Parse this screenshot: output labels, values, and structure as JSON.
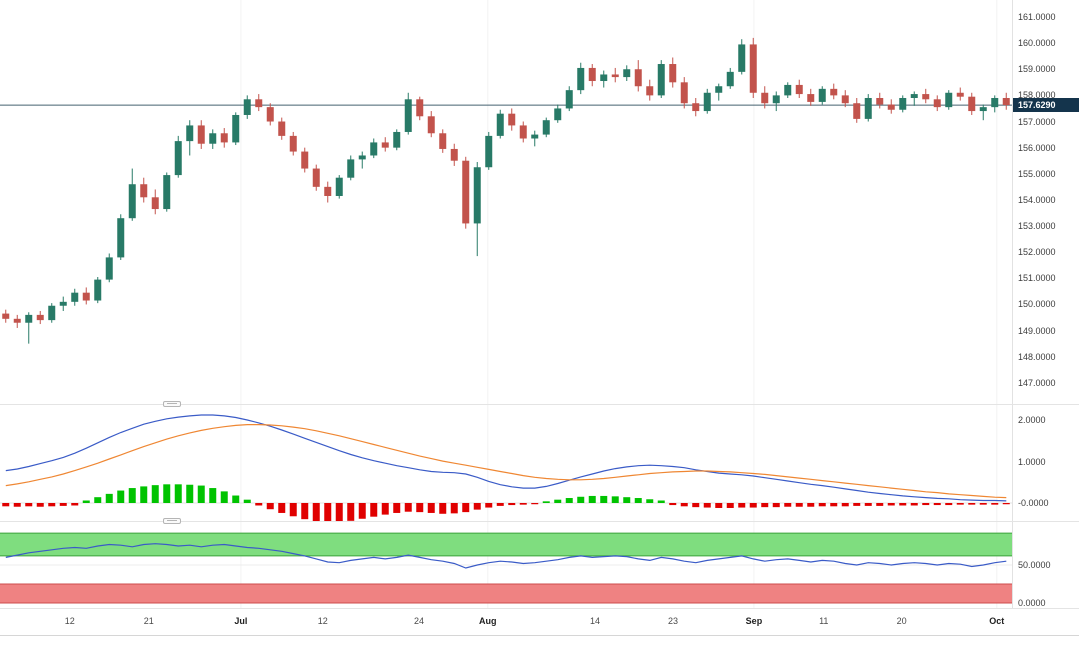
{
  "price_axis": {
    "tick_labels": [
      "161.0000",
      "160.0000",
      "159.0000",
      "158.0000",
      "157.0000",
      "156.0000",
      "155.0000",
      "154.0000",
      "153.0000",
      "152.0000",
      "151.0000",
      "150.0000",
      "149.0000",
      "148.0000",
      "147.0000"
    ],
    "tick_values": [
      161,
      160,
      159,
      158,
      157,
      156,
      155,
      154,
      153,
      152,
      151,
      150,
      149,
      148,
      147
    ],
    "current_price": "157.6290",
    "current_price_value": 157.629,
    "tag_bg": "#14344c",
    "tag_text_color": "#ffffff"
  },
  "x_axis": {
    "labels": [
      {
        "text": "12",
        "pos": 0.069,
        "bold": false
      },
      {
        "text": "21",
        "pos": 0.147,
        "bold": false
      },
      {
        "text": "Jul",
        "pos": 0.238,
        "bold": true
      },
      {
        "text": "12",
        "pos": 0.319,
        "bold": false
      },
      {
        "text": "24",
        "pos": 0.414,
        "bold": false
      },
      {
        "text": "Aug",
        "pos": 0.482,
        "bold": true
      },
      {
        "text": "14",
        "pos": 0.588,
        "bold": false
      },
      {
        "text": "23",
        "pos": 0.665,
        "bold": false
      },
      {
        "text": "Sep",
        "pos": 0.745,
        "bold": true
      },
      {
        "text": "11",
        "pos": 0.814,
        "bold": false
      },
      {
        "text": "20",
        "pos": 0.891,
        "bold": false
      },
      {
        "text": "Oct",
        "pos": 0.985,
        "bold": true
      }
    ]
  },
  "chart_data": [
    {
      "type": "candlestick",
      "name": "price",
      "ylim": [
        146.19,
        161.65
      ],
      "up_color": "#287a67",
      "down_color": "#c2534c",
      "price_line_color": "#44606f",
      "last_price": 157.629,
      "grid_color": "#f2f2f2",
      "ohlc": [
        [
          149.65,
          149.8,
          149.3,
          149.45
        ],
        [
          149.45,
          149.6,
          149.1,
          149.3
        ],
        [
          149.3,
          149.7,
          148.5,
          149.6
        ],
        [
          149.6,
          149.75,
          149.25,
          149.4
        ],
        [
          149.4,
          150.05,
          149.3,
          149.95
        ],
        [
          149.95,
          150.3,
          149.75,
          150.1
        ],
        [
          150.1,
          150.6,
          149.95,
          150.45
        ],
        [
          150.45,
          150.65,
          150.0,
          150.15
        ],
        [
          150.15,
          151.05,
          150.05,
          150.95
        ],
        [
          150.95,
          151.95,
          150.85,
          151.8
        ],
        [
          151.8,
          153.45,
          151.7,
          153.3
        ],
        [
          153.3,
          155.2,
          153.2,
          154.6
        ],
        [
          154.6,
          154.85,
          153.9,
          154.1
        ],
        [
          154.1,
          154.4,
          153.45,
          153.65
        ],
        [
          153.65,
          155.05,
          153.55,
          154.95
        ],
        [
          154.95,
          156.45,
          154.85,
          156.25
        ],
        [
          156.25,
          157.05,
          155.7,
          156.85
        ],
        [
          156.85,
          157.05,
          155.95,
          156.15
        ],
        [
          156.15,
          156.7,
          155.95,
          156.55
        ],
        [
          156.55,
          156.75,
          156.0,
          156.2
        ],
        [
          156.2,
          157.35,
          156.1,
          157.25
        ],
        [
          157.25,
          158.0,
          157.1,
          157.85
        ],
        [
          157.85,
          158.05,
          157.4,
          157.55
        ],
        [
          157.55,
          157.7,
          156.85,
          157.0
        ],
        [
          157.0,
          157.15,
          156.3,
          156.45
        ],
        [
          156.45,
          156.6,
          155.7,
          155.85
        ],
        [
          155.85,
          156.0,
          155.05,
          155.2
        ],
        [
          155.2,
          155.35,
          154.35,
          154.5
        ],
        [
          154.5,
          154.7,
          153.9,
          154.15
        ],
        [
          154.15,
          154.95,
          154.05,
          154.85
        ],
        [
          154.85,
          155.7,
          154.75,
          155.55
        ],
        [
          155.55,
          155.85,
          155.2,
          155.7
        ],
        [
          155.7,
          156.35,
          155.6,
          156.2
        ],
        [
          156.2,
          156.4,
          155.85,
          156.0
        ],
        [
          156.0,
          156.7,
          155.9,
          156.6
        ],
        [
          156.6,
          158.1,
          156.5,
          157.85
        ],
        [
          157.85,
          157.95,
          157.05,
          157.2
        ],
        [
          157.2,
          157.4,
          156.4,
          156.55
        ],
        [
          156.55,
          156.7,
          155.8,
          155.95
        ],
        [
          155.95,
          156.15,
          155.3,
          155.5
        ],
        [
          155.5,
          155.65,
          152.9,
          153.1
        ],
        [
          153.1,
          155.45,
          151.85,
          155.25
        ],
        [
          155.25,
          156.6,
          155.15,
          156.45
        ],
        [
          156.45,
          157.45,
          156.35,
          157.3
        ],
        [
          157.3,
          157.5,
          156.65,
          156.85
        ],
        [
          156.85,
          157.0,
          156.2,
          156.35
        ],
        [
          156.35,
          156.65,
          156.05,
          156.5
        ],
        [
          156.5,
          157.15,
          156.4,
          157.05
        ],
        [
          157.05,
          157.65,
          156.95,
          157.5
        ],
        [
          157.5,
          158.35,
          157.4,
          158.2
        ],
        [
          158.2,
          159.25,
          158.05,
          159.05
        ],
        [
          159.05,
          159.2,
          158.35,
          158.55
        ],
        [
          158.55,
          158.95,
          158.3,
          158.8
        ],
        [
          158.8,
          159.05,
          158.5,
          158.7
        ],
        [
          158.7,
          159.15,
          158.55,
          159.0
        ],
        [
          159.0,
          159.35,
          158.15,
          158.35
        ],
        [
          158.35,
          158.6,
          157.8,
          158.0
        ],
        [
          158.0,
          159.35,
          157.9,
          159.2
        ],
        [
          159.2,
          159.45,
          158.3,
          158.5
        ],
        [
          158.5,
          158.7,
          157.5,
          157.7
        ],
        [
          157.7,
          157.9,
          157.2,
          157.4
        ],
        [
          157.4,
          158.25,
          157.3,
          158.1
        ],
        [
          158.1,
          158.45,
          157.8,
          158.35
        ],
        [
          158.35,
          159.05,
          158.25,
          158.9
        ],
        [
          158.9,
          160.15,
          158.8,
          159.95
        ],
        [
          159.95,
          160.2,
          157.9,
          158.1
        ],
        [
          158.1,
          158.35,
          157.5,
          157.7
        ],
        [
          157.7,
          158.15,
          157.4,
          158.0
        ],
        [
          158.0,
          158.5,
          157.9,
          158.4
        ],
        [
          158.4,
          158.6,
          157.9,
          158.05
        ],
        [
          158.05,
          158.25,
          157.6,
          157.75
        ],
        [
          157.75,
          158.35,
          157.65,
          158.25
        ],
        [
          158.25,
          158.45,
          157.85,
          158.0
        ],
        [
          158.0,
          158.2,
          157.55,
          157.7
        ],
        [
          157.7,
          157.9,
          156.95,
          157.1
        ],
        [
          157.1,
          158.05,
          157.0,
          157.9
        ],
        [
          157.9,
          158.1,
          157.5,
          157.65
        ],
        [
          157.65,
          157.85,
          157.3,
          157.45
        ],
        [
          157.45,
          158.0,
          157.35,
          157.9
        ],
        [
          157.9,
          158.15,
          157.6,
          158.05
        ],
        [
          158.05,
          158.25,
          157.7,
          157.85
        ],
        [
          157.85,
          158.0,
          157.4,
          157.55
        ],
        [
          157.55,
          158.2,
          157.45,
          158.1
        ],
        [
          158.1,
          158.3,
          157.8,
          157.95
        ],
        [
          157.95,
          158.1,
          157.25,
          157.4
        ],
        [
          157.4,
          157.65,
          157.05,
          157.55
        ],
        [
          157.55,
          158.0,
          157.35,
          157.9
        ],
        [
          157.9,
          158.1,
          157.45,
          157.63
        ]
      ]
    },
    {
      "type": "macd",
      "name": "macd",
      "ylim": [
        -0.434,
        2.386
      ],
      "yticks": {
        "labels": [
          "2.0000",
          "1.0000",
          "-0.0000"
        ],
        "values": [
          2,
          1,
          0
        ]
      },
      "zero_line_color": "#e3e3e3",
      "histogram": {
        "up_color": "#00c300",
        "down_color": "#e00000",
        "values": [
          -0.08,
          -0.09,
          -0.08,
          -0.09,
          -0.08,
          -0.07,
          -0.06,
          0.06,
          0.14,
          0.22,
          0.3,
          0.36,
          0.4,
          0.43,
          0.45,
          0.45,
          0.44,
          0.42,
          0.36,
          0.28,
          0.18,
          0.08,
          -0.06,
          -0.15,
          -0.24,
          -0.32,
          -0.39,
          -0.44,
          -0.47,
          -0.46,
          -0.43,
          -0.38,
          -0.33,
          -0.28,
          -0.24,
          -0.21,
          -0.22,
          -0.24,
          -0.26,
          -0.25,
          -0.22,
          -0.16,
          -0.11,
          -0.07,
          -0.05,
          -0.04,
          -0.03,
          0.04,
          0.08,
          0.12,
          0.15,
          0.17,
          0.17,
          0.16,
          0.14,
          0.12,
          0.09,
          0.06,
          -0.05,
          -0.08,
          -0.1,
          -0.11,
          -0.12,
          -0.12,
          -0.11,
          -0.11,
          -0.1,
          -0.1,
          -0.09,
          -0.09,
          -0.09,
          -0.08,
          -0.08,
          -0.08,
          -0.07,
          -0.07,
          -0.07,
          -0.06,
          -0.06,
          -0.06,
          -0.05,
          -0.05,
          -0.05,
          -0.04,
          -0.04,
          -0.04,
          -0.04,
          -0.03
        ]
      },
      "series": [
        {
          "name": "macd-line",
          "color": "#3a5bc7",
          "values": [
            0.78,
            0.82,
            0.88,
            0.95,
            1.02,
            1.1,
            1.2,
            1.32,
            1.45,
            1.58,
            1.7,
            1.8,
            1.9,
            1.97,
            2.03,
            2.07,
            2.1,
            2.12,
            2.12,
            2.1,
            2.06,
            2.0,
            1.93,
            1.85,
            1.76,
            1.66,
            1.56,
            1.46,
            1.36,
            1.26,
            1.17,
            1.09,
            1.02,
            0.96,
            0.9,
            0.85,
            0.8,
            0.76,
            0.74,
            0.73,
            0.7,
            0.62,
            0.52,
            0.44,
            0.39,
            0.36,
            0.36,
            0.4,
            0.47,
            0.55,
            0.63,
            0.7,
            0.77,
            0.83,
            0.87,
            0.9,
            0.91,
            0.9,
            0.88,
            0.85,
            0.8,
            0.76,
            0.72,
            0.7,
            0.68,
            0.65,
            0.61,
            0.57,
            0.53,
            0.49,
            0.45,
            0.42,
            0.38,
            0.34,
            0.3,
            0.26,
            0.23,
            0.2,
            0.17,
            0.15,
            0.13,
            0.11,
            0.1,
            0.08,
            0.07,
            0.06,
            0.06,
            0.05
          ]
        },
        {
          "name": "signal-line",
          "color": "#ef8733",
          "values": [
            0.42,
            0.46,
            0.51,
            0.57,
            0.63,
            0.7,
            0.78,
            0.87,
            0.96,
            1.06,
            1.16,
            1.26,
            1.36,
            1.45,
            1.54,
            1.62,
            1.69,
            1.75,
            1.8,
            1.84,
            1.87,
            1.89,
            1.89,
            1.88,
            1.86,
            1.83,
            1.79,
            1.74,
            1.68,
            1.62,
            1.55,
            1.48,
            1.41,
            1.34,
            1.27,
            1.2,
            1.13,
            1.07,
            1.01,
            0.96,
            0.91,
            0.86,
            0.81,
            0.76,
            0.71,
            0.66,
            0.62,
            0.59,
            0.57,
            0.56,
            0.56,
            0.57,
            0.59,
            0.62,
            0.65,
            0.68,
            0.71,
            0.73,
            0.75,
            0.76,
            0.77,
            0.77,
            0.76,
            0.75,
            0.73,
            0.71,
            0.69,
            0.66,
            0.63,
            0.6,
            0.57,
            0.54,
            0.51,
            0.48,
            0.45,
            0.42,
            0.39,
            0.36,
            0.33,
            0.3,
            0.27,
            0.25,
            0.22,
            0.2,
            0.18,
            0.16,
            0.14,
            0.13
          ]
        }
      ]
    },
    {
      "type": "stochastic",
      "name": "stochastic",
      "ylim": [
        -6.6,
        107.9
      ],
      "yticks": {
        "labels": [
          "50.0000",
          "0.0000"
        ],
        "values": [
          50,
          0
        ]
      },
      "mid_line_value": 50,
      "mid_line_color": "#ececec",
      "bands": [
        {
          "name": "overbought-zone",
          "range": [
            62,
            92
          ],
          "fill": "#7fdd7f",
          "edge": "#3aa23a"
        },
        {
          "name": "oversold-zone",
          "range": [
            0,
            25
          ],
          "fill": "#ef8282",
          "edge": "#cc4c4c"
        }
      ],
      "line": {
        "name": "stochastic-line",
        "color": "#3a5bc7",
        "values": [
          60,
          63,
          66,
          68,
          70,
          72,
          73,
          72,
          75,
          77,
          76,
          74,
          77,
          78,
          77,
          75,
          76,
          74,
          76,
          77,
          75,
          73,
          72,
          70,
          68,
          65,
          62,
          58,
          54,
          53,
          56,
          58,
          60,
          58,
          60,
          63,
          60,
          57,
          55,
          52,
          46,
          50,
          53,
          55,
          54,
          52,
          53,
          55,
          57,
          60,
          62,
          60,
          61,
          62,
          61,
          58,
          56,
          60,
          58,
          55,
          53,
          56,
          58,
          60,
          62,
          58,
          55,
          57,
          58,
          56,
          54,
          56,
          55,
          52,
          50,
          53,
          52,
          50,
          52,
          53,
          52,
          50,
          52,
          51,
          48,
          50,
          53,
          55
        ]
      }
    }
  ]
}
